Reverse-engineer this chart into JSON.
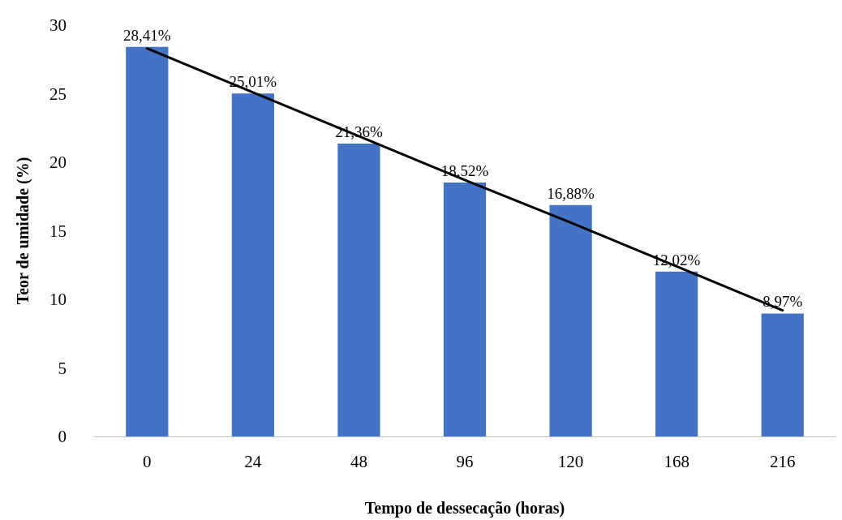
{
  "chart_data": {
    "type": "bar",
    "xlabel": "Tempo de dessecação (horas)",
    "ylabel": "Teor de umidade (%)",
    "categories": [
      "0",
      "24",
      "48",
      "96",
      "120",
      "168",
      "216"
    ],
    "series": [
      {
        "color": "#4472c4",
        "values": [
          28.41,
          25.01,
          21.36,
          18.52,
          16.88,
          12.02,
          8.97
        ],
        "value_labels": [
          "28,41%",
          "25,01%",
          "21,36%",
          "18,52%",
          "16,88%",
          "12,02%",
          "8,97%"
        ]
      },
      {
        "type": "line",
        "color": "#000000",
        "values": [
          28.3,
          25.1,
          21.9,
          18.7,
          15.6,
          12.4,
          9.2
        ],
        "marker": "none",
        "line_style": "solid"
      }
    ],
    "ylim": [
      0,
      30
    ],
    "yticks": [
      0,
      5,
      10,
      15,
      20,
      25,
      30
    ],
    "grid": false
  }
}
